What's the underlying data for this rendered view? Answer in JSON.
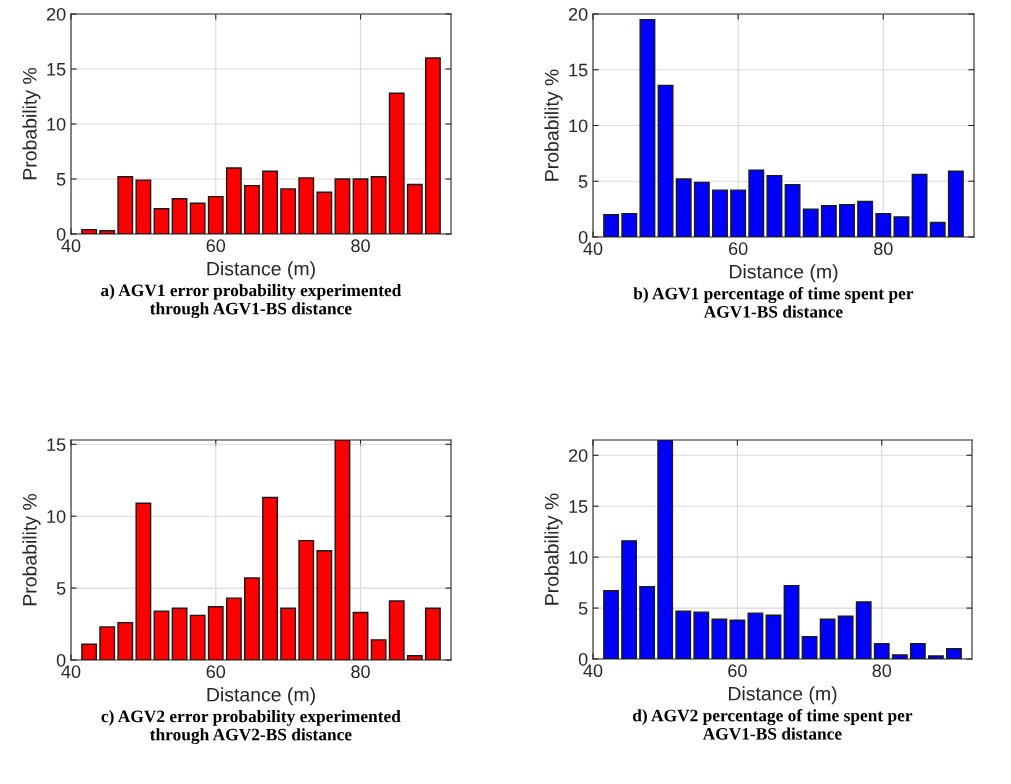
{
  "chart_data": [
    {
      "type": "bar",
      "title": "a) AGV1 error probability experimented through AGV1-BS distance",
      "xlabel": "Distance (m)",
      "ylabel": "Probability %",
      "color": "#ff0000",
      "xlim": [
        40,
        92.5
      ],
      "ylim": [
        0,
        20
      ],
      "xticks": [
        40,
        60,
        80
      ],
      "yticks": [
        0,
        5,
        10,
        15,
        20
      ],
      "grid": true,
      "x": [
        42.5,
        45,
        47.5,
        50,
        52.5,
        55,
        57.5,
        60,
        62.5,
        65,
        67.5,
        70,
        72.5,
        75,
        77.5,
        80,
        82.5,
        85,
        87.5,
        90
      ],
      "values": [
        0.4,
        0.3,
        5.2,
        4.9,
        2.3,
        3.2,
        2.8,
        3.4,
        6.0,
        4.4,
        5.7,
        4.1,
        5.1,
        3.8,
        5.0,
        5.0,
        5.2,
        12.8,
        4.5,
        16.0
      ]
    },
    {
      "type": "bar",
      "title": "b) AGV1 percentage of time spent per AGV1-BS distance",
      "xlabel": "Distance (m)",
      "ylabel": "Probability %",
      "color": "#0000ff",
      "xlim": [
        40,
        92.5
      ],
      "ylim": [
        0,
        20
      ],
      "xticks": [
        40,
        60,
        80
      ],
      "yticks": [
        0,
        5,
        10,
        15,
        20
      ],
      "grid": true,
      "x": [
        42.5,
        45,
        47.5,
        50,
        52.5,
        55,
        57.5,
        60,
        62.5,
        65,
        67.5,
        70,
        72.5,
        75,
        77.5,
        80,
        82.5,
        85,
        87.5,
        90
      ],
      "values": [
        2.0,
        2.1,
        19.5,
        13.6,
        5.2,
        4.9,
        4.2,
        4.2,
        6.0,
        5.5,
        4.7,
        2.5,
        2.8,
        2.9,
        3.2,
        2.1,
        1.8,
        5.6,
        1.3,
        5.9
      ]
    },
    {
      "type": "bar",
      "title": "c) AGV2 error probability experimented through AGV2-BS distance",
      "xlabel": "Distance (m)",
      "ylabel": "Probability %",
      "color": "#ff0000",
      "xlim": [
        40,
        92.5
      ],
      "ylim": [
        0,
        15.3
      ],
      "xticks": [
        40,
        60,
        80
      ],
      "yticks": [
        0,
        5,
        10,
        15
      ],
      "grid": true,
      "x": [
        42.5,
        45,
        47.5,
        50,
        52.5,
        55,
        57.5,
        60,
        62.5,
        65,
        67.5,
        70,
        72.5,
        75,
        77.5,
        80,
        82.5,
        85,
        87.5,
        90
      ],
      "values": [
        1.1,
        2.3,
        2.6,
        10.9,
        3.4,
        3.6,
        3.1,
        3.7,
        4.3,
        5.7,
        11.3,
        3.6,
        8.3,
        7.6,
        15.3,
        3.3,
        1.4,
        4.1,
        0.3,
        3.6
      ]
    },
    {
      "type": "bar",
      "title": "d) AGV2 percentage of time spent per AGV1-BS distance",
      "xlabel": "Distance (m)",
      "ylabel": "Probability %",
      "color": "#0000ff",
      "xlim": [
        40,
        92.5
      ],
      "ylim": [
        0,
        21.5
      ],
      "xticks": [
        40,
        60,
        80
      ],
      "yticks": [
        0,
        5,
        10,
        15,
        20
      ],
      "grid": true,
      "x": [
        42.5,
        45,
        47.5,
        50,
        52.5,
        55,
        57.5,
        60,
        62.5,
        65,
        67.5,
        70,
        72.5,
        75,
        77.5,
        80,
        82.5,
        85,
        87.5,
        90
      ],
      "values": [
        6.7,
        11.6,
        7.1,
        21.5,
        4.7,
        4.6,
        3.9,
        3.8,
        4.5,
        4.3,
        7.2,
        2.2,
        3.9,
        4.2,
        5.6,
        1.5,
        0.4,
        1.5,
        0.3,
        1.0
      ]
    }
  ]
}
